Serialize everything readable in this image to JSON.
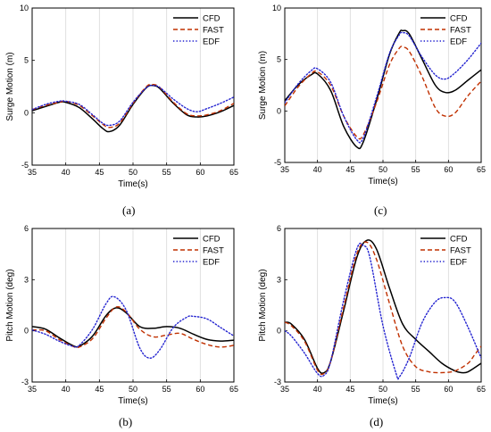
{
  "colors": {
    "CFD": "#000000",
    "FAST": "#c03000",
    "EDF": "#2323d0"
  },
  "chart_data": [
    {
      "id": "a",
      "type": "line",
      "panel_label": "(a)",
      "xlabel": "Time(s)",
      "ylabel": "Surge Motion (m)",
      "xlim": [
        35,
        65
      ],
      "ylim": [
        -5,
        10
      ],
      "xticks": [
        35,
        40,
        45,
        50,
        55,
        60,
        65
      ],
      "yticks": [
        -5,
        0,
        5,
        10
      ],
      "grid": true,
      "legend": "top-right",
      "series": [
        {
          "name": "CFD",
          "style": "solid",
          "x": [
            35,
            37,
            39,
            40,
            42,
            44,
            45.5,
            46.5,
            48,
            50,
            52,
            53,
            54,
            56,
            58,
            59.5,
            61,
            63,
            65
          ],
          "y": [
            0.2,
            0.6,
            1.0,
            1.0,
            0.5,
            -0.6,
            -1.5,
            -1.8,
            -1.2,
            0.8,
            2.4,
            2.6,
            2.3,
            0.9,
            -0.2,
            -0.4,
            -0.3,
            0.1,
            0.7
          ]
        },
        {
          "name": "FAST",
          "style": "dashed",
          "x": [
            35,
            37,
            39,
            40,
            42,
            44,
            45.5,
            46.5,
            48,
            50,
            52,
            53,
            54,
            56,
            58,
            59.5,
            61,
            63,
            65
          ],
          "y": [
            0.3,
            0.7,
            1.0,
            1.1,
            0.7,
            -0.3,
            -1.1,
            -1.4,
            -1.0,
            0.9,
            2.5,
            2.7,
            2.4,
            1.0,
            -0.1,
            -0.3,
            -0.2,
            0.2,
            0.9
          ]
        },
        {
          "name": "EDF",
          "style": "dotted",
          "x": [
            35,
            37,
            39,
            40,
            42,
            44,
            45.5,
            46.5,
            48,
            50,
            52,
            53,
            54,
            56,
            58,
            59.5,
            61,
            63,
            65
          ],
          "y": [
            0.3,
            0.8,
            1.1,
            1.1,
            0.8,
            -0.2,
            -1.0,
            -1.2,
            -0.8,
            1.0,
            2.4,
            2.6,
            2.4,
            1.3,
            0.4,
            0.1,
            0.4,
            0.9,
            1.5
          ]
        }
      ]
    },
    {
      "id": "c",
      "type": "line",
      "panel_label": "(c)",
      "xlabel": "Time(s)",
      "ylabel": "Surge Motion (m)",
      "xlim": [
        35,
        65
      ],
      "ylim": [
        -5,
        10
      ],
      "xticks": [
        35,
        40,
        45,
        50,
        55,
        60,
        65
      ],
      "yticks": [
        -5,
        0,
        5,
        10
      ],
      "grid": true,
      "legend": "top-right",
      "series": [
        {
          "name": "CFD",
          "style": "solid",
          "x": [
            35,
            37,
            39,
            40,
            42,
            44,
            46,
            47,
            49,
            51,
            52.5,
            53,
            54,
            56,
            58,
            59.5,
            61,
            63,
            65
          ],
          "y": [
            1.0,
            2.5,
            3.5,
            3.6,
            2.0,
            -1.5,
            -3.5,
            -3.0,
            1.0,
            5.5,
            7.6,
            7.8,
            7.5,
            5.0,
            2.5,
            1.8,
            2.0,
            3.0,
            4.0
          ]
        },
        {
          "name": "FAST",
          "style": "dashed",
          "x": [
            35,
            37,
            39,
            40,
            42,
            44,
            46,
            47,
            49,
            51,
            52.5,
            53,
            54,
            56,
            58,
            59.5,
            61,
            63,
            65
          ],
          "y": [
            0.5,
            2.3,
            3.6,
            3.8,
            2.5,
            -0.5,
            -2.5,
            -2.3,
            0.8,
            4.5,
            6.1,
            6.2,
            5.8,
            3.3,
            0.3,
            -0.5,
            -0.2,
            1.5,
            2.9
          ]
        },
        {
          "name": "EDF",
          "style": "dotted",
          "x": [
            35,
            37,
            39,
            40,
            42,
            44,
            46,
            47,
            49,
            51,
            52.5,
            53,
            54,
            56,
            58,
            59.5,
            61,
            63,
            65
          ],
          "y": [
            0.8,
            2.6,
            3.9,
            4.1,
            2.8,
            -0.5,
            -2.8,
            -2.6,
            1.3,
            5.6,
            7.4,
            7.6,
            7.3,
            5.2,
            3.5,
            3.1,
            3.7,
            5.0,
            6.6
          ]
        }
      ]
    },
    {
      "id": "b",
      "type": "line",
      "panel_label": "(b)",
      "xlabel": "Time(s)",
      "ylabel": "Pitch Motion (deg)",
      "xlim": [
        35,
        65
      ],
      "ylim": [
        -3,
        6
      ],
      "xticks": [
        35,
        40,
        45,
        50,
        55,
        60,
        65
      ],
      "yticks": [
        -3,
        0,
        3,
        6
      ],
      "grid": true,
      "legend": "top-right",
      "series": [
        {
          "name": "CFD",
          "style": "solid",
          "x": [
            35,
            37,
            39,
            41,
            42,
            44,
            46,
            47.5,
            49,
            51,
            53,
            55,
            57,
            59,
            61,
            63,
            65
          ],
          "y": [
            0.25,
            0.1,
            -0.4,
            -0.85,
            -0.9,
            -0.3,
            0.9,
            1.35,
            1.05,
            0.25,
            0.15,
            0.25,
            0.15,
            -0.2,
            -0.5,
            -0.6,
            -0.55
          ]
        },
        {
          "name": "FAST",
          "style": "dashed",
          "x": [
            35,
            37,
            39,
            41,
            42,
            44,
            46,
            47.5,
            49,
            51,
            53,
            55,
            57,
            59,
            61,
            63,
            65
          ],
          "y": [
            0.05,
            0.0,
            -0.5,
            -0.9,
            -0.95,
            -0.45,
            0.75,
            1.4,
            1.1,
            0.1,
            -0.35,
            -0.25,
            -0.15,
            -0.5,
            -0.8,
            -0.95,
            -0.85
          ]
        },
        {
          "name": "EDF",
          "style": "dotted",
          "x": [
            35,
            37,
            39,
            41,
            42,
            44,
            46,
            47.2,
            49,
            51,
            52.5,
            54,
            56,
            58,
            59,
            61,
            63,
            65
          ],
          "y": [
            0.05,
            -0.2,
            -0.6,
            -0.9,
            -0.85,
            0.1,
            1.6,
            2.0,
            1.2,
            -1.0,
            -1.6,
            -1.1,
            0.2,
            0.8,
            0.85,
            0.7,
            0.2,
            -0.3
          ]
        }
      ]
    },
    {
      "id": "d",
      "type": "line",
      "panel_label": "(d)",
      "xlabel": "Time(s)",
      "ylabel": "Pitch Motion (deg)",
      "xlim": [
        35,
        65
      ],
      "ylim": [
        -3,
        6
      ],
      "xticks": [
        35,
        40,
        45,
        50,
        55,
        60,
        65
      ],
      "yticks": [
        -3,
        0,
        3,
        6
      ],
      "grid": true,
      "legend": "top-right",
      "series": [
        {
          "name": "CFD",
          "style": "solid",
          "x": [
            35,
            36,
            38,
            40,
            41,
            42,
            44,
            46,
            47.5,
            49,
            51,
            53,
            55,
            57,
            59,
            61,
            62,
            63,
            65
          ],
          "y": [
            0.5,
            0.4,
            -0.5,
            -2.2,
            -2.45,
            -1.8,
            1.2,
            4.3,
            5.3,
            4.8,
            2.5,
            0.4,
            -0.5,
            -1.2,
            -1.9,
            -2.35,
            -2.45,
            -2.4,
            -1.9
          ]
        },
        {
          "name": "FAST",
          "style": "dashed",
          "x": [
            35,
            36,
            38,
            40,
            41,
            42,
            44,
            46,
            47.5,
            49,
            51,
            53,
            55,
            57,
            59,
            61,
            63,
            64,
            65
          ],
          "y": [
            0.5,
            0.3,
            -0.6,
            -2.3,
            -2.5,
            -1.8,
            1.4,
            4.5,
            5.2,
            4.2,
            1.6,
            -0.9,
            -2.1,
            -2.4,
            -2.45,
            -2.35,
            -1.9,
            -1.4,
            -0.9
          ]
        },
        {
          "name": "EDF",
          "style": "dotted",
          "x": [
            35,
            36,
            38,
            40,
            41,
            42,
            44,
            46,
            47,
            48,
            50,
            52,
            52.5,
            54,
            56,
            58,
            59.5,
            61,
            63,
            65
          ],
          "y": [
            0.0,
            -0.3,
            -1.3,
            -2.5,
            -2.6,
            -1.8,
            1.8,
            4.8,
            5.0,
            4.3,
            0.3,
            -2.5,
            -2.7,
            -1.6,
            0.5,
            1.7,
            1.95,
            1.7,
            0.2,
            -1.6
          ]
        }
      ]
    }
  ]
}
